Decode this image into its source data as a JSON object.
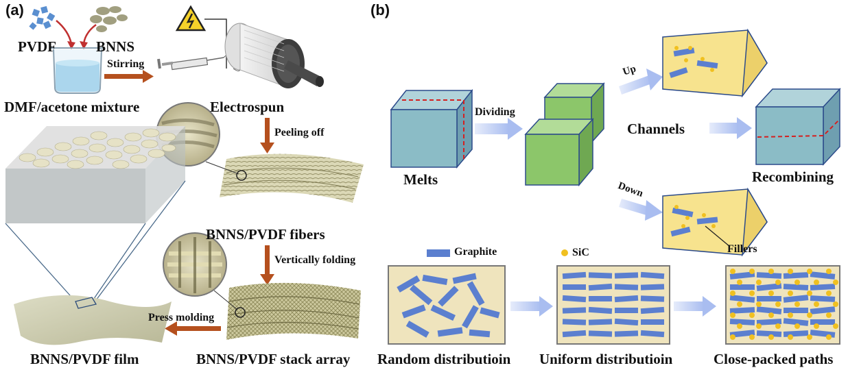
{
  "panel_a": {
    "label": "(a)",
    "pvdf": "PVDF",
    "bnns": "BNNS",
    "solvent": "DMF/acetone mixture",
    "stirring": "Stirring",
    "electrospun": "Electrospun",
    "peeling": "Peeling off",
    "fibers": "BNNS/PVDF fibers",
    "folding": "Vertically folding",
    "press": "Press molding",
    "film": "BNNS/PVDF film",
    "stack": "BNNS/PVDF stack array"
  },
  "panel_b": {
    "label": "(b)",
    "melts": "Melts",
    "dividing": "Dividing",
    "up": "Up",
    "down": "Down",
    "channels": "Channels",
    "recombining": "Recombining",
    "fillers": "Fillers",
    "graphite": "Graphite",
    "sic": "SiC",
    "random": "Random distributioin",
    "uniform": "Uniform distributioin",
    "close": "Close-packed paths"
  },
  "colors": {
    "cube_blue": "#8bbcc6",
    "cube_green": "#8cc66a",
    "channel_yellow": "#f7e38e",
    "graphite_blue": "#5b7fcf",
    "sic_yellow": "#f0c020",
    "arrow_orange": "#b5501e",
    "arrow_light_blue": "#b9c8f0",
    "frame_beige": "#efe4bd"
  }
}
